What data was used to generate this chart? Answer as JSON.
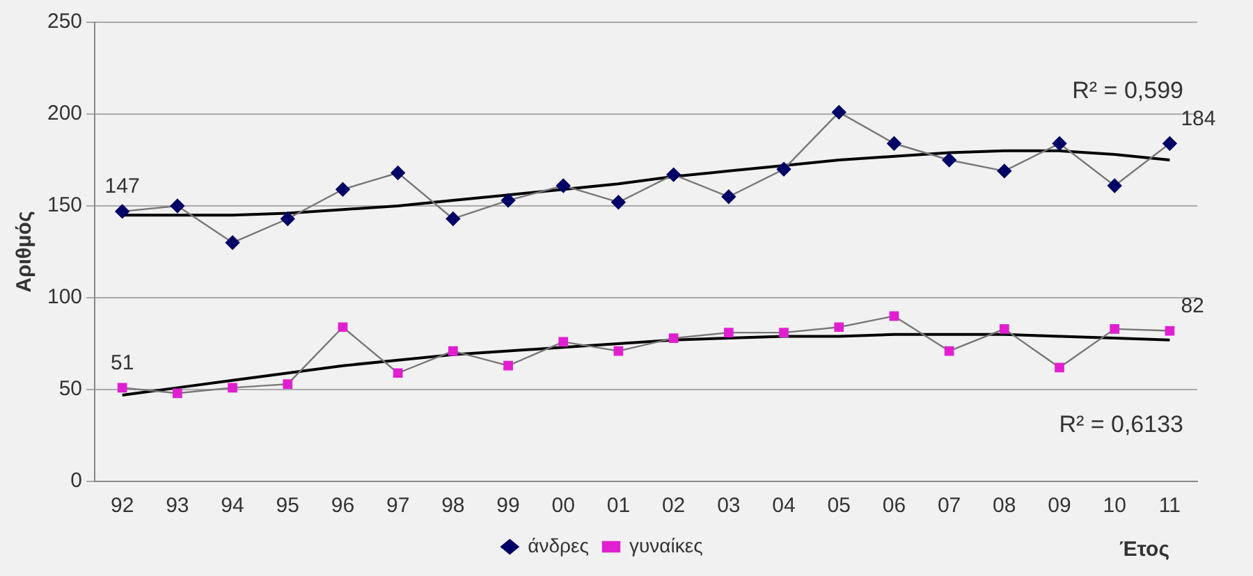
{
  "chart_data": {
    "type": "line",
    "xlabel": "Έτος",
    "ylabel": "Αριθμός",
    "categories": [
      "92",
      "93",
      "94",
      "95",
      "96",
      "97",
      "98",
      "99",
      "00",
      "01",
      "02",
      "03",
      "04",
      "05",
      "06",
      "07",
      "08",
      "09",
      "10",
      "11"
    ],
    "series": [
      {
        "name": "άνδρες",
        "color": "#000066",
        "marker": "diamond",
        "values": [
          147,
          150,
          130,
          143,
          159,
          168,
          143,
          153,
          161,
          152,
          167,
          155,
          170,
          201,
          184,
          175,
          169,
          184,
          161,
          184
        ],
        "value_labels": [
          "147",
          null,
          null,
          null,
          null,
          null,
          null,
          null,
          null,
          null,
          null,
          null,
          null,
          null,
          null,
          null,
          null,
          null,
          null,
          "184"
        ]
      },
      {
        "name": "γυναίκες",
        "color": "#e020d0",
        "marker": "square",
        "values": [
          51,
          48,
          51,
          53,
          84,
          59,
          71,
          63,
          76,
          71,
          78,
          81,
          81,
          84,
          90,
          71,
          83,
          62,
          83,
          82
        ],
        "value_labels": [
          "51",
          null,
          null,
          null,
          null,
          null,
          null,
          null,
          null,
          null,
          null,
          null,
          null,
          null,
          null,
          null,
          null,
          null,
          null,
          "82"
        ]
      },
      {
        "color": "#000000",
        "marker": "none",
        "values": [
          145,
          145,
          145,
          146,
          148,
          150,
          153,
          156,
          159,
          162,
          166,
          169,
          172,
          175,
          177,
          179,
          180,
          180,
          178,
          175
        ]
      },
      {
        "color": "#000000",
        "marker": "none",
        "values": [
          47,
          51,
          55,
          59,
          63,
          66,
          69,
          71,
          73,
          75,
          77,
          78,
          79,
          79,
          80,
          80,
          80,
          79,
          78,
          77
        ]
      }
    ],
    "annotations": [
      "R² = 0,599",
      "R² = 0,6133"
    ],
    "ylim": [
      0,
      250
    ],
    "yticks": [
      0,
      50,
      100,
      150,
      200,
      250
    ],
    "grid": "y",
    "legend": "bottom"
  }
}
